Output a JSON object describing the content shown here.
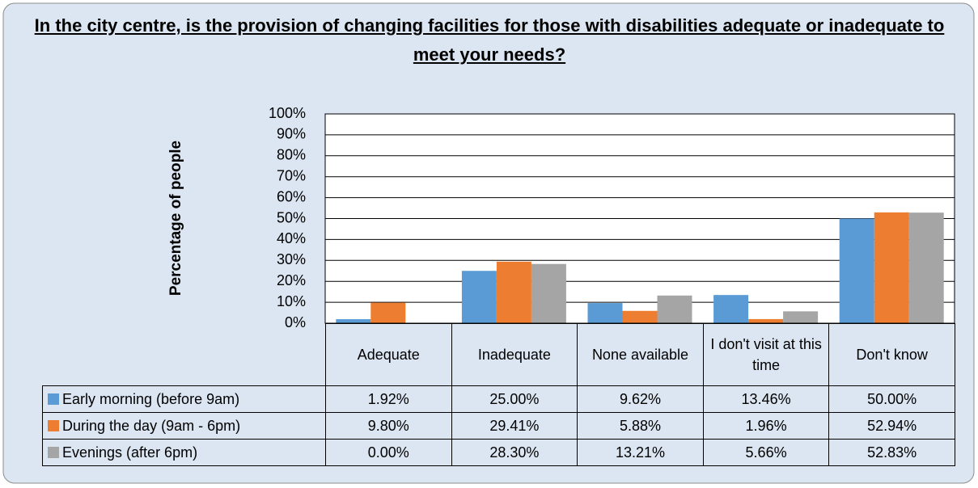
{
  "chart_data": {
    "type": "bar",
    "title": "In the city centre, is the provision of changing facilities for those with disabilities adequate or inadequate to meet your needs?",
    "y_label": "Percentage of people",
    "categories": [
      "Adequate",
      "Inadequate",
      "None available",
      "I don't visit at this time",
      "Don't know"
    ],
    "series": [
      {
        "name": "Early morning (before 9am)",
        "color": "#5b9bd5",
        "values": [
          1.92,
          25.0,
          9.62,
          13.46,
          50.0
        ],
        "value_labels": [
          "1.92%",
          "25.00%",
          "9.62%",
          "13.46%",
          "50.00%"
        ]
      },
      {
        "name": "During the day (9am - 6pm)",
        "color": "#ed7d31",
        "values": [
          9.8,
          29.41,
          5.88,
          1.96,
          52.94
        ],
        "value_labels": [
          "9.80%",
          "29.41%",
          "5.88%",
          "1.96%",
          "52.94%"
        ]
      },
      {
        "name": "Evenings (after 6pm)",
        "color": "#a5a5a5",
        "values": [
          0.0,
          28.3,
          13.21,
          5.66,
          52.83
        ],
        "value_labels": [
          "0.00%",
          "28.30%",
          "13.21%",
          "5.66%",
          "52.83%"
        ]
      }
    ],
    "ylim": [
      0,
      100
    ],
    "yticks": [
      {
        "value": 0,
        "label": "0%"
      },
      {
        "value": 10,
        "label": "10%"
      },
      {
        "value": 20,
        "label": "20%"
      },
      {
        "value": 30,
        "label": "30%"
      },
      {
        "value": 40,
        "label": "40%"
      },
      {
        "value": 50,
        "label": "50%"
      },
      {
        "value": 60,
        "label": "60%"
      },
      {
        "value": 70,
        "label": "70%"
      },
      {
        "value": 80,
        "label": "80%"
      },
      {
        "value": 90,
        "label": "90%"
      },
      {
        "value": 100,
        "label": "100%"
      }
    ],
    "grid": true
  }
}
